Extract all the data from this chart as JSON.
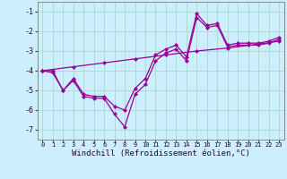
{
  "xlabel": "Windchill (Refroidissement éolien,°C)",
  "bg_color": "#cceeff",
  "grid_color": "#aaddcc",
  "line_color": "#990099",
  "xlim": [
    -0.5,
    23.5
  ],
  "ylim": [
    -7.5,
    -0.5
  ],
  "yticks": [
    -7,
    -6,
    -5,
    -4,
    -3,
    -2,
    -1
  ],
  "xticks": [
    0,
    1,
    2,
    3,
    4,
    5,
    6,
    7,
    8,
    9,
    10,
    11,
    12,
    13,
    14,
    15,
    16,
    17,
    18,
    19,
    20,
    21,
    22,
    23
  ],
  "series": [
    {
      "x": [
        0,
        1,
        2,
        3,
        4,
        5,
        6,
        7,
        8,
        9,
        10,
        11,
        12,
        13,
        14,
        15,
        16,
        17,
        18,
        19,
        20,
        21,
        22,
        23
      ],
      "y": [
        -4.0,
        -4.1,
        -5.0,
        -4.5,
        -5.3,
        -5.4,
        -5.4,
        -6.2,
        -6.85,
        -5.2,
        -4.7,
        -3.5,
        -3.1,
        -2.9,
        -3.5,
        -1.3,
        -1.8,
        -1.7,
        -2.8,
        -2.7,
        -2.7,
        -2.7,
        -2.6,
        -2.4
      ]
    },
    {
      "x": [
        0,
        3,
        6,
        9,
        12,
        15,
        18,
        21,
        23
      ],
      "y": [
        -4.0,
        -3.8,
        -3.6,
        -3.4,
        -3.2,
        -3.0,
        -2.85,
        -2.65,
        -2.5
      ]
    },
    {
      "x": [
        0,
        1,
        2,
        3,
        4,
        5,
        6,
        7,
        8,
        9,
        10,
        11,
        12,
        13,
        14,
        15,
        16,
        17,
        18,
        19,
        20,
        21,
        22,
        23
      ],
      "y": [
        -4.0,
        -4.0,
        -5.0,
        -4.4,
        -5.2,
        -5.3,
        -5.3,
        -5.8,
        -6.0,
        -4.9,
        -4.4,
        -3.2,
        -2.9,
        -2.7,
        -3.3,
        -1.1,
        -1.7,
        -1.6,
        -2.7,
        -2.6,
        -2.6,
        -2.6,
        -2.5,
        -2.3
      ]
    }
  ]
}
